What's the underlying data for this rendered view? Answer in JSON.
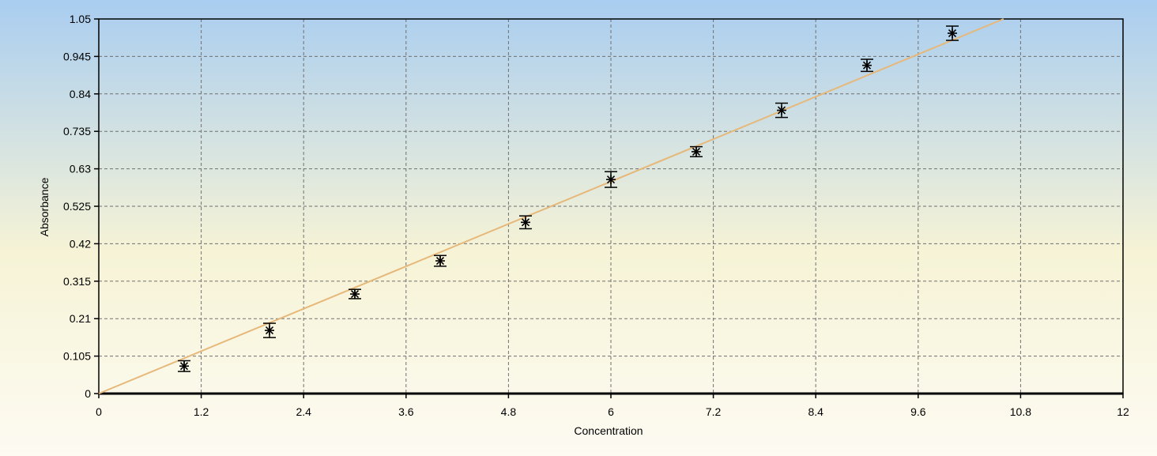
{
  "chart_data": {
    "type": "scatter",
    "title": "",
    "xlabel": "Concentration",
    "ylabel": "Absorbance",
    "xlim": [
      0,
      12
    ],
    "ylim": [
      0,
      1.05
    ],
    "xticks": [
      "0",
      "1.2",
      "2.4",
      "3.6",
      "4.8",
      "6",
      "7.2",
      "8.4",
      "9.6",
      "10.8",
      "12"
    ],
    "yticks": [
      "0",
      "0.105",
      "0.21",
      "0.315",
      "0.42",
      "0.525",
      "0.63",
      "0.735",
      "0.84",
      "0.945",
      "1.05"
    ],
    "grid": true,
    "legend": "none",
    "series": [
      {
        "marker": "asterisk",
        "error_bars": true,
        "x": [
          1,
          2,
          3,
          4,
          5,
          6,
          7,
          8,
          9,
          10
        ],
        "y": [
          0.077,
          0.177,
          0.279,
          0.372,
          0.48,
          0.6,
          0.678,
          0.794,
          0.92,
          1.01
        ],
        "yerr": [
          0.015,
          0.02,
          0.013,
          0.015,
          0.018,
          0.022,
          0.014,
          0.02,
          0.017,
          0.02
        ]
      }
    ],
    "fit_line": {
      "x": [
        0,
        10.6
      ],
      "y": [
        0,
        1.05
      ],
      "color": "#e6b87a"
    },
    "colors": {
      "background_top": "#a9cdf0",
      "background_mid": "#f6f3d6",
      "background_bottom": "#fdfbf2",
      "grid": "#707070",
      "marker": "#000000"
    }
  }
}
